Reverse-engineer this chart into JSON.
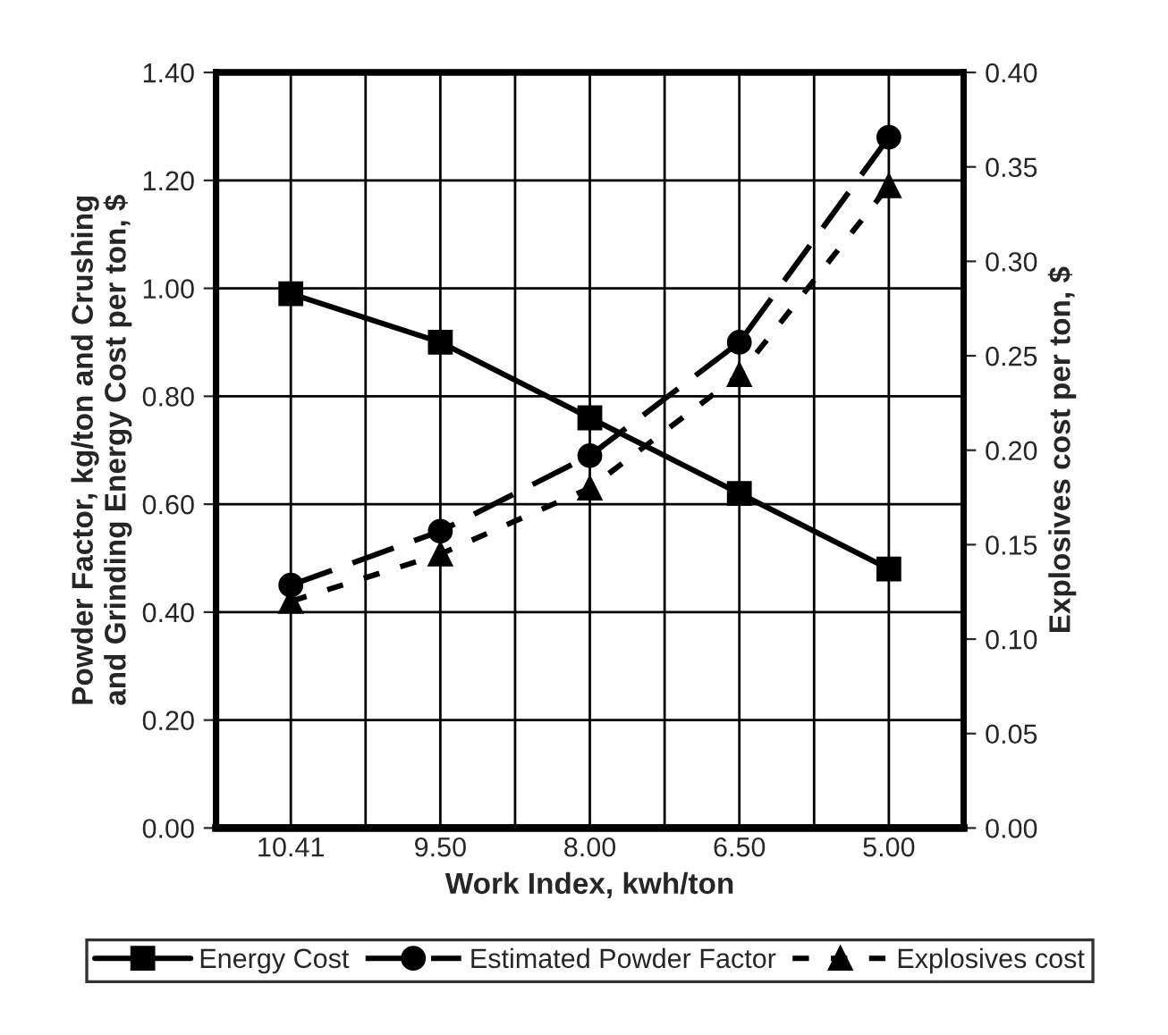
{
  "chart_data": {
    "type": "line",
    "xlabel": "Work Index, kwh/ton",
    "ylabel": "Powder Factor, kg/ton and Crushing\nand Grinding Energy Cost per ton, $",
    "y2label": "Explosives cost per ton, $",
    "categories": [
      "10.41",
      "9.50",
      "8.00",
      "6.50",
      "5.00"
    ],
    "series": [
      {
        "name": "Energy Cost",
        "color": "#000000",
        "marker": "square",
        "line_style": "solid",
        "values": [
          0.99,
          0.9,
          0.76,
          0.62,
          0.48
        ]
      },
      {
        "name": "Estimated Powder Factor",
        "color": "#000000",
        "marker": "circle",
        "line_style": "dashed",
        "values": [
          0.45,
          0.55,
          0.69,
          0.9,
          1.28
        ]
      },
      {
        "name": "Explosives cost",
        "color": "#000000",
        "marker": "triangle",
        "line_style": "dotted",
        "axis": "y2",
        "values": [
          0.12,
          0.145,
          0.18,
          0.24,
          0.34
        ]
      }
    ],
    "ylim": [
      0,
      1.4
    ],
    "yticks": [
      {
        "value": 0,
        "label": "0.00"
      },
      {
        "value": 0.2,
        "label": "0.20"
      },
      {
        "value": 0.4,
        "label": "0.40"
      },
      {
        "value": 0.6,
        "label": "0.60"
      },
      {
        "value": 0.8,
        "label": "0.80"
      },
      {
        "value": 1.0,
        "label": "1.00"
      },
      {
        "value": 1.2,
        "label": "1.20"
      },
      {
        "value": 1.4,
        "label": "1.40"
      }
    ],
    "y2lim": [
      0,
      0.4
    ],
    "y2ticks": [
      {
        "value": 0,
        "label": "0.00"
      },
      {
        "value": 0.05,
        "label": "0.05"
      },
      {
        "value": 0.1,
        "label": "0.10"
      },
      {
        "value": 0.15,
        "label": "0.15"
      },
      {
        "value": 0.2,
        "label": "0.20"
      },
      {
        "value": 0.25,
        "label": "0.25"
      },
      {
        "value": 0.3,
        "label": "0.30"
      },
      {
        "value": 0.35,
        "label": "0.35"
      },
      {
        "value": 0.4,
        "label": "0.40"
      }
    ],
    "grid": true,
    "legend": "bottom"
  }
}
